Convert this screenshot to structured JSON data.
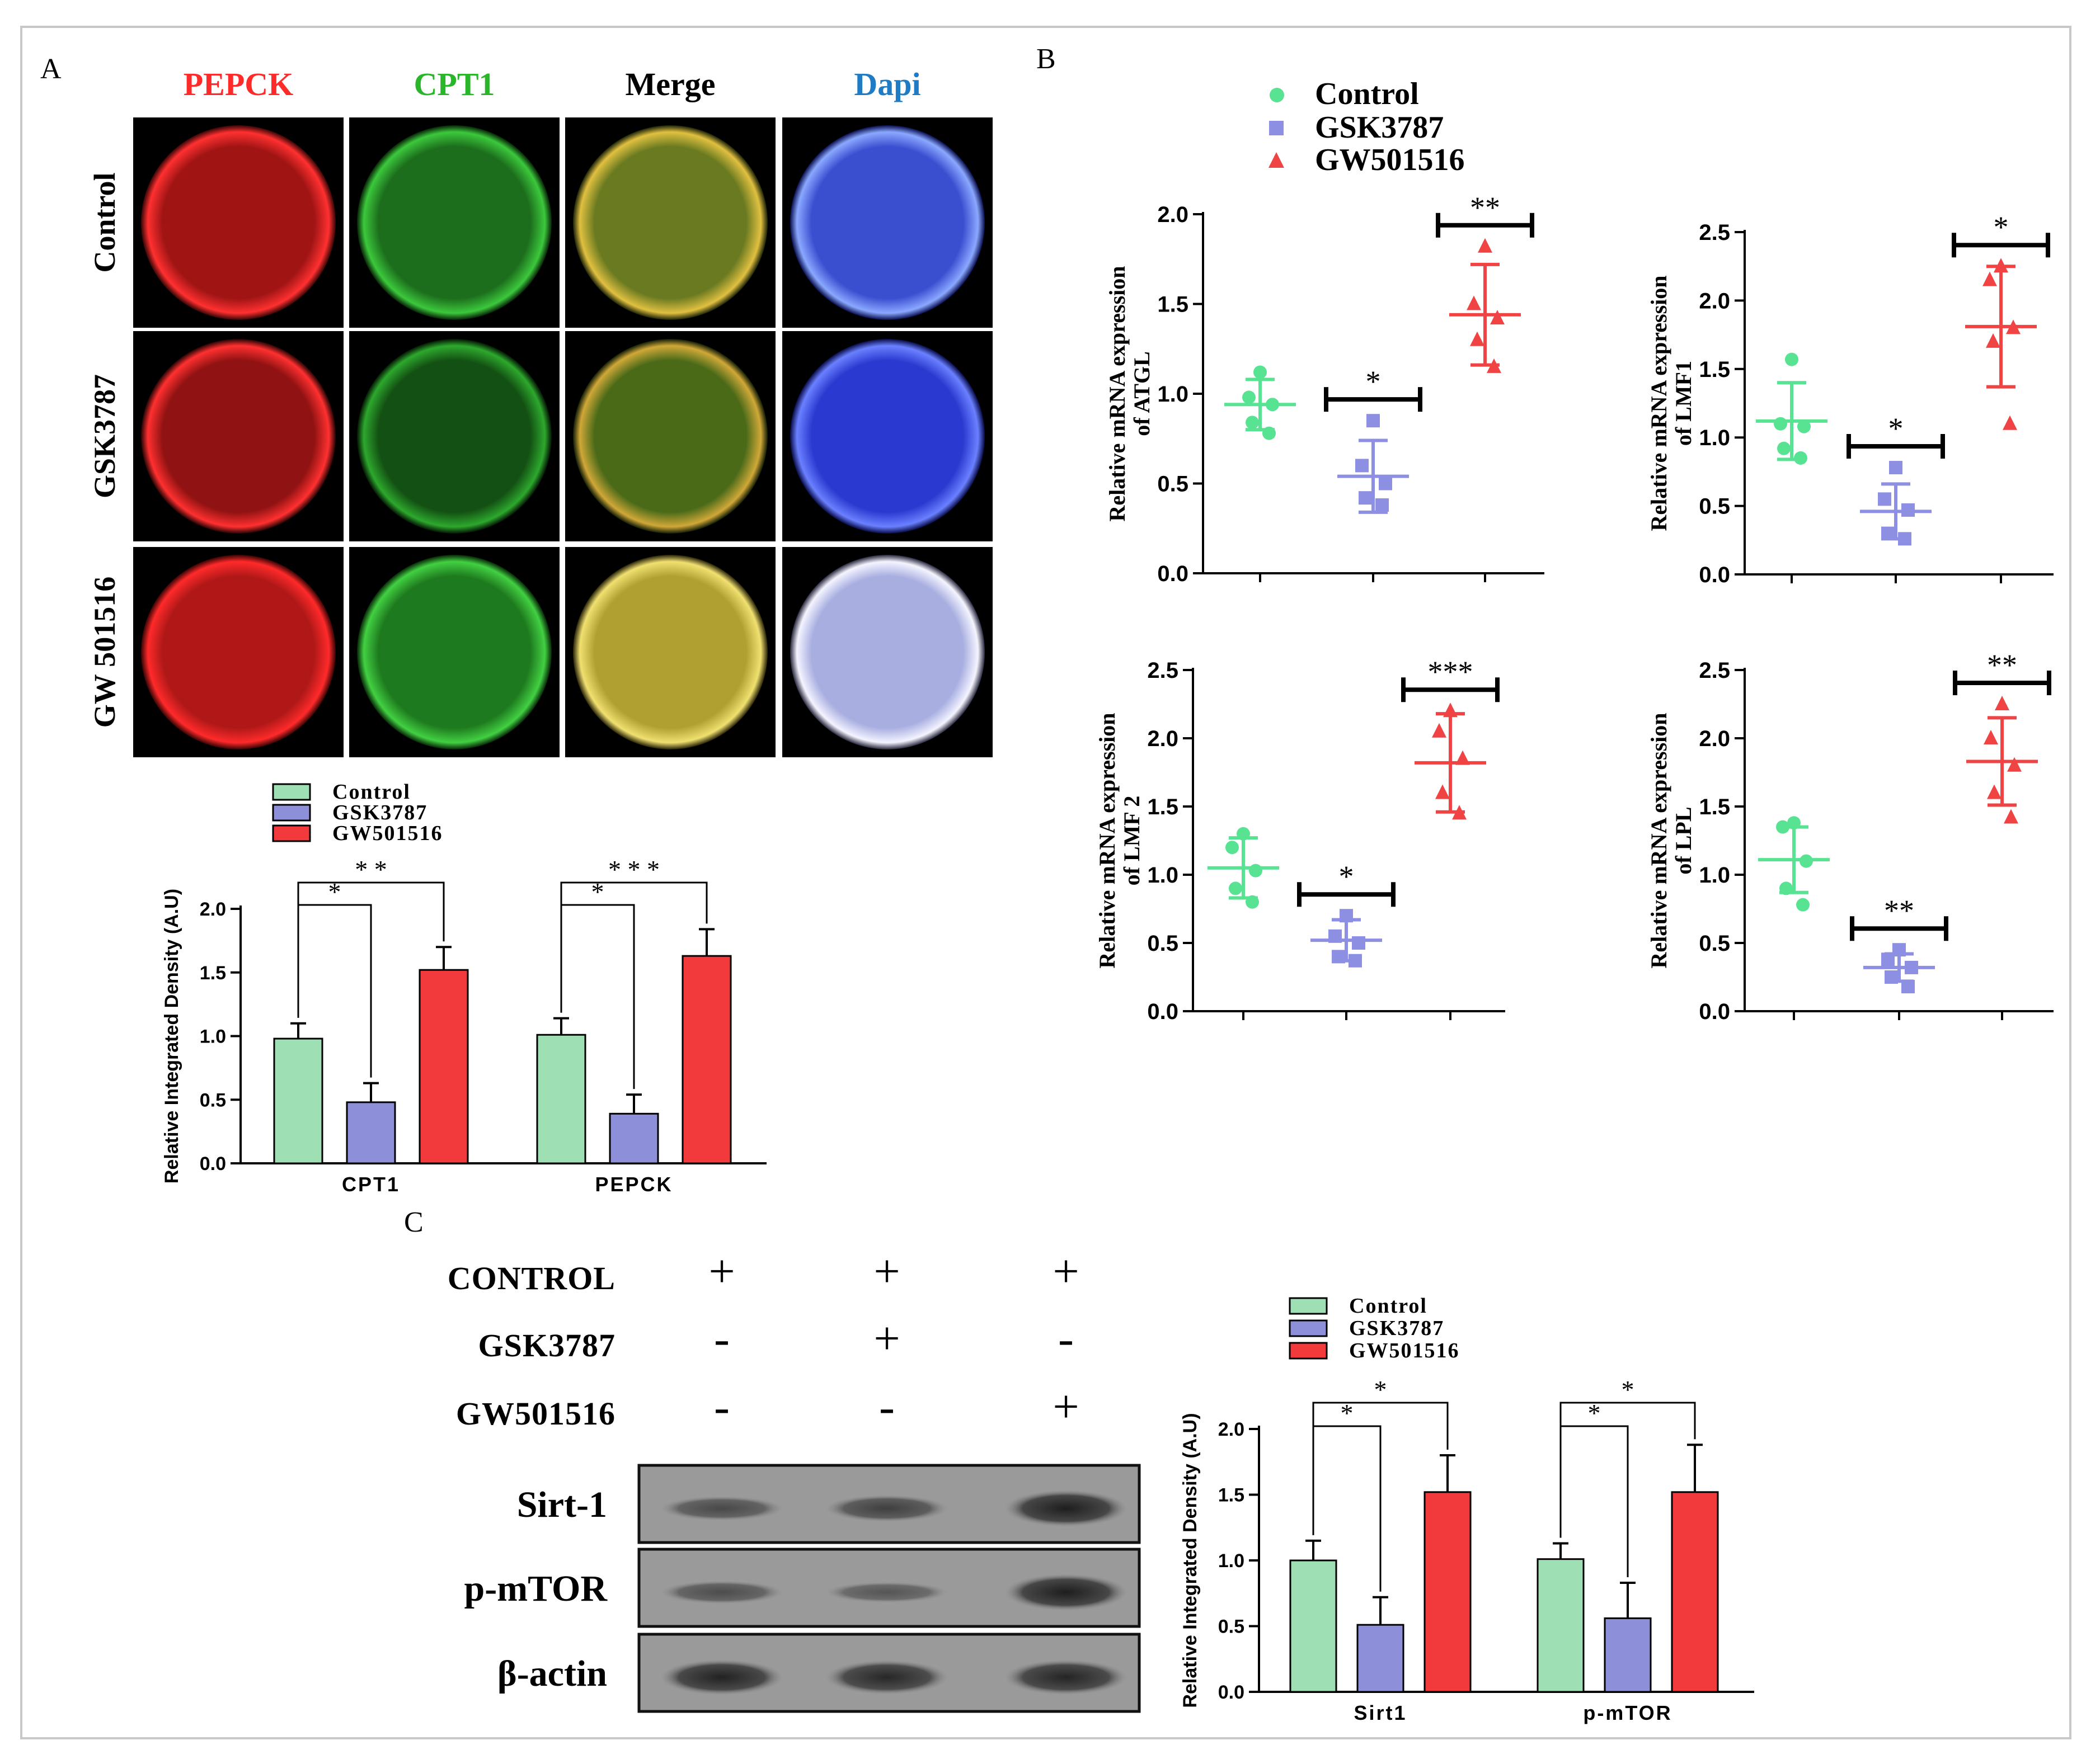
{
  "colors": {
    "control": "#57e391",
    "gsk": "#8d8fe3",
    "gw": "#f04444",
    "bar_control": "#9ee0b4",
    "bar_gsk": "#8e8fd9",
    "bar_gw": "#f2393c",
    "stain_pepck": "#ff2b2b",
    "stain_cpt1": "#2bb52b",
    "stain_dapi": "#1e7bc4"
  },
  "panels": {
    "a": "A",
    "b": "B",
    "c": "C"
  },
  "microscopy": {
    "columns": [
      "PEPCK",
      "CPT1",
      "Merge",
      "Dapi"
    ],
    "rows": [
      "Control",
      "GSK3787",
      "GW 501516"
    ]
  },
  "legend_b": [
    "Control",
    "GSK3787",
    "GW501516"
  ],
  "chart_data": [
    {
      "id": "A-bar",
      "type": "bar",
      "ylabel": "Relative Integrated Density (A.U)",
      "ylim": [
        0,
        2.0
      ],
      "yticks": [
        "0.0",
        "0.5",
        "1.0",
        "1.5",
        "2.0"
      ],
      "categories": [
        "CPT1",
        "PEPCK"
      ],
      "legend": [
        "Control",
        "GSK3787",
        "GW501516"
      ],
      "series": [
        {
          "name": "Control",
          "values": [
            0.98,
            1.01
          ],
          "errors": [
            0.12,
            0.13
          ]
        },
        {
          "name": "GSK3787",
          "values": [
            0.48,
            0.39
          ],
          "errors": [
            0.15,
            0.15
          ]
        },
        {
          "name": "GW501516",
          "values": [
            1.52,
            1.63
          ],
          "errors": [
            0.18,
            0.21
          ]
        }
      ],
      "significance": [
        {
          "category": 0,
          "compare": "GSK3787",
          "label": "*"
        },
        {
          "category": 0,
          "compare": "GW501516",
          "label": "* *"
        },
        {
          "category": 1,
          "compare": "GSK3787",
          "label": "*"
        },
        {
          "category": 1,
          "compare": "GW501516",
          "label": "* * *"
        }
      ]
    },
    {
      "id": "B-ATGL",
      "type": "scatter",
      "ylabel": "Relative mRNA expression of ATGL",
      "ylim": [
        0,
        2.0
      ],
      "yticks": [
        "0.0",
        "0.5",
        "1.0",
        "1.5",
        "2.0"
      ],
      "groups": [
        {
          "name": "Control",
          "points": [
            1.12,
            0.98,
            0.94,
            0.84,
            0.78
          ],
          "mean": 0.94,
          "sd": 0.14
        },
        {
          "name": "GSK3787",
          "points": [
            0.85,
            0.6,
            0.5,
            0.42,
            0.38
          ],
          "mean": 0.54,
          "sd": 0.2
        },
        {
          "name": "GW501516",
          "points": [
            1.82,
            1.5,
            1.42,
            1.3,
            1.15
          ],
          "mean": 1.44,
          "sd": 0.28
        }
      ],
      "significance": [
        {
          "group": "GSK3787",
          "label": "*"
        },
        {
          "group": "GW501516",
          "label": "**"
        }
      ]
    },
    {
      "id": "B-LMF1",
      "type": "scatter",
      "ylabel": "Relative mRNA expression of LMF1",
      "ylim": [
        0,
        2.5
      ],
      "yticks": [
        "0.0",
        "0.5",
        "1.0",
        "1.5",
        "2.0",
        "2.5"
      ],
      "groups": [
        {
          "name": "Control",
          "points": [
            1.57,
            1.1,
            1.08,
            0.92,
            0.85
          ],
          "mean": 1.12,
          "sd": 0.28
        },
        {
          "name": "GSK3787",
          "points": [
            0.78,
            0.55,
            0.47,
            0.3,
            0.26
          ],
          "mean": 0.46,
          "sd": 0.2
        },
        {
          "name": "GW501516",
          "points": [
            2.25,
            2.15,
            1.8,
            1.7,
            1.1
          ],
          "mean": 1.81,
          "sd": 0.44
        }
      ],
      "significance": [
        {
          "group": "GSK3787",
          "label": "*"
        },
        {
          "group": "GW501516",
          "label": "*"
        }
      ]
    },
    {
      "id": "B-LMF2",
      "type": "scatter",
      "ylabel": "Relative mRNA expression of LMF 2",
      "ylim": [
        0,
        2.5
      ],
      "yticks": [
        "0.0",
        "0.5",
        "1.0",
        "1.5",
        "2.0",
        "2.5"
      ],
      "groups": [
        {
          "name": "Control",
          "points": [
            1.3,
            1.2,
            1.03,
            0.9,
            0.8
          ],
          "mean": 1.05,
          "sd": 0.22
        },
        {
          "name": "GSK3787",
          "points": [
            0.7,
            0.55,
            0.5,
            0.4,
            0.37
          ],
          "mean": 0.52,
          "sd": 0.15
        },
        {
          "name": "GW501516",
          "points": [
            2.2,
            2.05,
            1.85,
            1.6,
            1.45
          ],
          "mean": 1.82,
          "sd": 0.36
        }
      ],
      "significance": [
        {
          "group": "GSK3787",
          "label": "*"
        },
        {
          "group": "GW501516",
          "label": "***"
        }
      ]
    },
    {
      "id": "B-LPL",
      "type": "scatter",
      "ylabel": "Relative mRNA expression of LPL",
      "ylim": [
        0,
        2.5
      ],
      "yticks": [
        "0.0",
        "0.5",
        "1.0",
        "1.5",
        "2.0",
        "2.5"
      ],
      "groups": [
        {
          "name": "Control",
          "points": [
            1.38,
            1.35,
            1.1,
            0.9,
            0.78
          ],
          "mean": 1.11,
          "sd": 0.24
        },
        {
          "name": "GSK3787",
          "points": [
            0.45,
            0.38,
            0.32,
            0.25,
            0.18
          ],
          "mean": 0.32,
          "sd": 0.1
        },
        {
          "name": "GW501516",
          "points": [
            2.25,
            2.0,
            1.8,
            1.6,
            1.42
          ],
          "mean": 1.83,
          "sd": 0.32
        }
      ],
      "significance": [
        {
          "group": "GSK3787",
          "label": "**"
        },
        {
          "group": "GW501516",
          "label": "**"
        }
      ]
    },
    {
      "id": "C-bar",
      "type": "bar",
      "ylabel": "Relative Integrated Density (A.U)",
      "ylim": [
        0,
        2.0
      ],
      "yticks": [
        "0.0",
        "0.5",
        "1.0",
        "1.5",
        "2.0"
      ],
      "categories": [
        "Sirt1",
        "p-mTOR"
      ],
      "legend": [
        "Control",
        "GSK3787",
        "GW501516"
      ],
      "series": [
        {
          "name": "Control",
          "values": [
            1.0,
            1.01
          ],
          "errors": [
            0.15,
            0.12
          ]
        },
        {
          "name": "GSK3787",
          "values": [
            0.51,
            0.56
          ],
          "errors": [
            0.21,
            0.27
          ]
        },
        {
          "name": "GW501516",
          "values": [
            1.52,
            1.52
          ],
          "errors": [
            0.28,
            0.36
          ]
        }
      ],
      "significance": [
        {
          "category": 0,
          "compare": "GSK3787",
          "label": "*"
        },
        {
          "category": 0,
          "compare": "GW501516",
          "label": "*"
        },
        {
          "category": 1,
          "compare": "GSK3787",
          "label": "*"
        },
        {
          "category": 1,
          "compare": "GW501516",
          "label": "*"
        }
      ]
    }
  ],
  "western": {
    "treatments": [
      {
        "label": "CONTROL",
        "marks": [
          "+",
          "+",
          "+"
        ]
      },
      {
        "label": "GSK3787",
        "marks": [
          "-",
          "+",
          "-"
        ]
      },
      {
        "label": "GW501516",
        "marks": [
          "-",
          "-",
          "+"
        ]
      }
    ],
    "bands": [
      {
        "label": "Sirt-1",
        "intensity": [
          0.45,
          0.55,
          0.95
        ]
      },
      {
        "label": "p-mTOR",
        "intensity": [
          0.4,
          0.3,
          0.95
        ]
      },
      {
        "label": "β-actin",
        "intensity": [
          0.9,
          0.85,
          0.88
        ]
      }
    ]
  }
}
